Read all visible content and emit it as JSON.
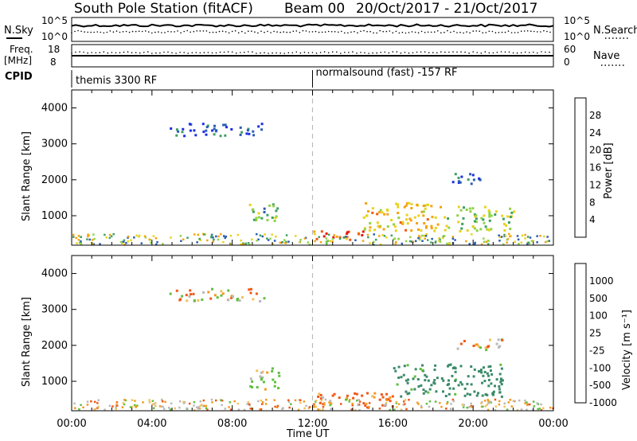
{
  "header": {
    "station": "South Pole Station (fitACF)",
    "beam": "Beam 00",
    "date_range": "20/Oct/2017 - 21/Oct/2017"
  },
  "sky_panel": {
    "left_label": "N.Sky",
    "right_label": "N.Search",
    "left_ticks": [
      "10^5",
      "10^0"
    ],
    "right_ticks": [
      "10^5",
      "10^0"
    ]
  },
  "freq_panel": {
    "left_label_1": "Freq.",
    "left_label_2": "[MHz]",
    "right_label": "Nave",
    "left_ticks": [
      "18",
      "8"
    ],
    "right_ticks": [
      "60",
      "0"
    ]
  },
  "cpid_panel": {
    "label": "CPID",
    "mode_1": "themis 3300 RF",
    "mode_2": "normalsound (fast) -157 RF",
    "mode_switch_hour": 12
  },
  "chart_data": [
    {
      "type": "heatmap",
      "parameter": "Power",
      "ylabel": "Slant Range [km]",
      "colorbar_label": "Power [dB]",
      "colorbar_ticks": [
        "28",
        "24",
        "20",
        "16",
        "12",
        "8",
        "4"
      ],
      "colorbar_colors": [
        "#e8190e",
        "#f25a10",
        "#f5a30f",
        "#e9d21b",
        "#8fd444",
        "#3f9f62",
        "#2a5db0",
        "#1b2fe3"
      ],
      "ylim": [
        180,
        4500
      ],
      "yticks": [
        1000,
        2000,
        3000,
        4000
      ],
      "xlim_hours": [
        0,
        24
      ],
      "regions": [
        {
          "t0": 4.8,
          "t1": 9.6,
          "r0": 3250,
          "r1": 3600,
          "value_db": 5
        },
        {
          "t0": 8.8,
          "t1": 10.3,
          "r0": 800,
          "r1": 1400,
          "value_db": 12
        },
        {
          "t0": 12.0,
          "t1": 14.5,
          "r0": 300,
          "r1": 600,
          "value_db": 26
        },
        {
          "t0": 14.5,
          "t1": 18.5,
          "r0": 600,
          "r1": 1400,
          "value_db": 20
        },
        {
          "t0": 18.5,
          "t1": 22.0,
          "r0": 600,
          "r1": 1300,
          "value_db": 14
        },
        {
          "t0": 18.5,
          "t1": 20.5,
          "r0": 1900,
          "r1": 2200,
          "value_db": 6
        }
      ]
    },
    {
      "type": "heatmap",
      "parameter": "Velocity",
      "ylabel": "Slant Range [km]",
      "xlabel": "Time UT",
      "colorbar_label": "Velocity [m s⁻¹]",
      "colorbar_ticks": [
        "1000",
        "500",
        "100",
        "25",
        "-25",
        "-100",
        "-500",
        "-1000"
      ],
      "colorbar_colors": [
        "#2a4fb8",
        "#3b8a6a",
        "#5fbf3f",
        "#b9b9b9",
        "#f0c060",
        "#f59a20",
        "#f05818",
        "#e8190e"
      ],
      "ylim": [
        180,
        4500
      ],
      "yticks": [
        1000,
        2000,
        3000,
        4000
      ],
      "xlim_hours": [
        0,
        24
      ],
      "xtick_labels": [
        "00:00",
        "04:00",
        "08:00",
        "12:00",
        "16:00",
        "20:00",
        "00:00"
      ],
      "regions": [
        {
          "t0": 4.8,
          "t1": 9.6,
          "r0": 3250,
          "r1": 3600,
          "value_ms": 0
        },
        {
          "t0": 8.8,
          "t1": 10.3,
          "r0": 800,
          "r1": 1400,
          "value_ms": 200
        },
        {
          "t0": 12.0,
          "t1": 16.0,
          "r0": 300,
          "r1": 700,
          "value_ms": -200
        },
        {
          "t0": 16.0,
          "t1": 21.5,
          "r0": 600,
          "r1": 1500,
          "value_ms": 700
        },
        {
          "t0": 19.0,
          "t1": 21.5,
          "r0": 1900,
          "r1": 2200,
          "value_ms": -50
        }
      ]
    }
  ]
}
